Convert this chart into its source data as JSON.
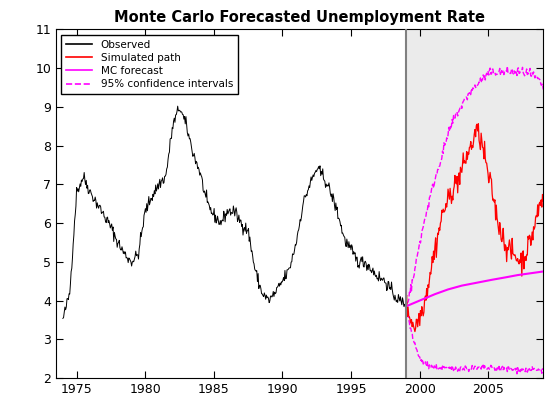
{
  "title": "Monte Carlo Forecasted Unemployment Rate",
  "xlim": [
    1973.5,
    2009.0
  ],
  "ylim": [
    2,
    11
  ],
  "yticks": [
    2,
    3,
    4,
    5,
    6,
    7,
    8,
    9,
    10,
    11
  ],
  "xticks": [
    1975,
    1980,
    1985,
    1990,
    1995,
    2000,
    2005
  ],
  "forecast_start": 1999.0,
  "legend_labels": [
    "Observed",
    "Simulated path",
    "MC forecast",
    "95% confidence intervals"
  ],
  "hist_key_years": [
    1974.0,
    1974.5,
    1975.0,
    1975.5,
    1976.0,
    1976.5,
    1977.0,
    1977.5,
    1978.0,
    1978.5,
    1979.0,
    1979.5,
    1980.0,
    1980.5,
    1981.0,
    1981.5,
    1982.0,
    1982.5,
    1983.0,
    1983.5,
    1984.0,
    1984.5,
    1985.0,
    1985.5,
    1986.0,
    1986.5,
    1987.0,
    1987.5,
    1988.0,
    1988.5,
    1989.0,
    1989.5,
    1990.0,
    1990.5,
    1991.0,
    1991.5,
    1992.0,
    1992.5,
    1993.0,
    1993.5,
    1994.0,
    1994.5,
    1995.0,
    1995.5,
    1996.0,
    1996.5,
    1997.0,
    1997.5,
    1998.0,
    1998.5,
    1999.0
  ],
  "hist_key_vals": [
    3.5,
    4.2,
    6.8,
    7.2,
    6.8,
    6.5,
    6.2,
    5.9,
    5.5,
    5.2,
    5.0,
    5.2,
    6.3,
    6.7,
    7.0,
    7.2,
    8.5,
    9.0,
    8.5,
    7.8,
    7.3,
    6.5,
    6.2,
    6.0,
    6.3,
    6.3,
    6.0,
    5.8,
    4.8,
    4.2,
    4.0,
    4.2,
    4.5,
    4.8,
    5.5,
    6.5,
    7.0,
    7.4,
    7.2,
    6.8,
    6.3,
    5.6,
    5.3,
    5.0,
    5.0,
    4.8,
    4.6,
    4.5,
    4.2,
    4.0,
    3.9
  ],
  "sim_key_years": [
    1999.0,
    1999.3,
    1999.6,
    1999.9,
    2000.2,
    2000.5,
    2000.8,
    2001.1,
    2001.4,
    2001.7,
    2002.0,
    2002.3,
    2002.6,
    2002.9,
    2003.2,
    2003.5,
    2003.8,
    2004.1,
    2004.4,
    2004.7,
    2005.0,
    2005.3,
    2005.6,
    2005.9,
    2006.2,
    2006.5,
    2006.8,
    2007.1,
    2007.4,
    2007.7,
    2008.0,
    2008.3,
    2008.6,
    2008.9
  ],
  "sim_key_vals": [
    3.9,
    3.6,
    3.3,
    3.5,
    3.8,
    4.2,
    4.8,
    5.3,
    5.8,
    6.3,
    6.5,
    6.8,
    7.0,
    7.2,
    7.5,
    7.8,
    8.0,
    8.4,
    8.2,
    7.8,
    7.2,
    6.8,
    6.2,
    5.8,
    5.5,
    5.3,
    5.2,
    5.1,
    5.0,
    5.2,
    5.5,
    5.8,
    6.3,
    6.6
  ],
  "mc_key_years": [
    1999.0,
    2000.0,
    2001.0,
    2002.0,
    2003.0,
    2004.0,
    2005.0,
    2006.0,
    2007.0,
    2008.0,
    2009.0
  ],
  "mc_key_vals": [
    3.85,
    4.0,
    4.15,
    4.28,
    4.38,
    4.45,
    4.52,
    4.58,
    4.65,
    4.7,
    4.75
  ],
  "upper_ci_key_years": [
    1999.0,
    1999.5,
    2000.0,
    2000.5,
    2001.0,
    2001.5,
    2002.0,
    2002.5,
    2003.0,
    2003.5,
    2004.0,
    2004.5,
    2005.0,
    2005.5,
    2006.0,
    2006.5,
    2007.0,
    2007.5,
    2008.0,
    2008.5,
    2009.0
  ],
  "upper_ci_key_vals": [
    3.85,
    4.5,
    5.5,
    6.3,
    7.0,
    7.6,
    8.2,
    8.7,
    9.0,
    9.3,
    9.5,
    9.7,
    9.85,
    9.9,
    9.9,
    9.9,
    9.9,
    9.9,
    9.85,
    9.75,
    9.5
  ],
  "lower_ci_key_years": [
    1999.0,
    1999.5,
    2000.0,
    2000.5,
    2001.0,
    2001.5,
    2002.0,
    2002.5,
    2003.0,
    2003.5,
    2004.0,
    2004.5,
    2009.0
  ],
  "lower_ci_key_vals": [
    3.85,
    3.0,
    2.5,
    2.35,
    2.28,
    2.25,
    2.25,
    2.25,
    2.25,
    2.25,
    2.25,
    2.25,
    2.2
  ],
  "noise_seed": 42,
  "hist_noise_std": 0.08,
  "sim_noise_std": 0.15,
  "upper_noise_std": 0.06,
  "lower_noise_std": 0.04
}
